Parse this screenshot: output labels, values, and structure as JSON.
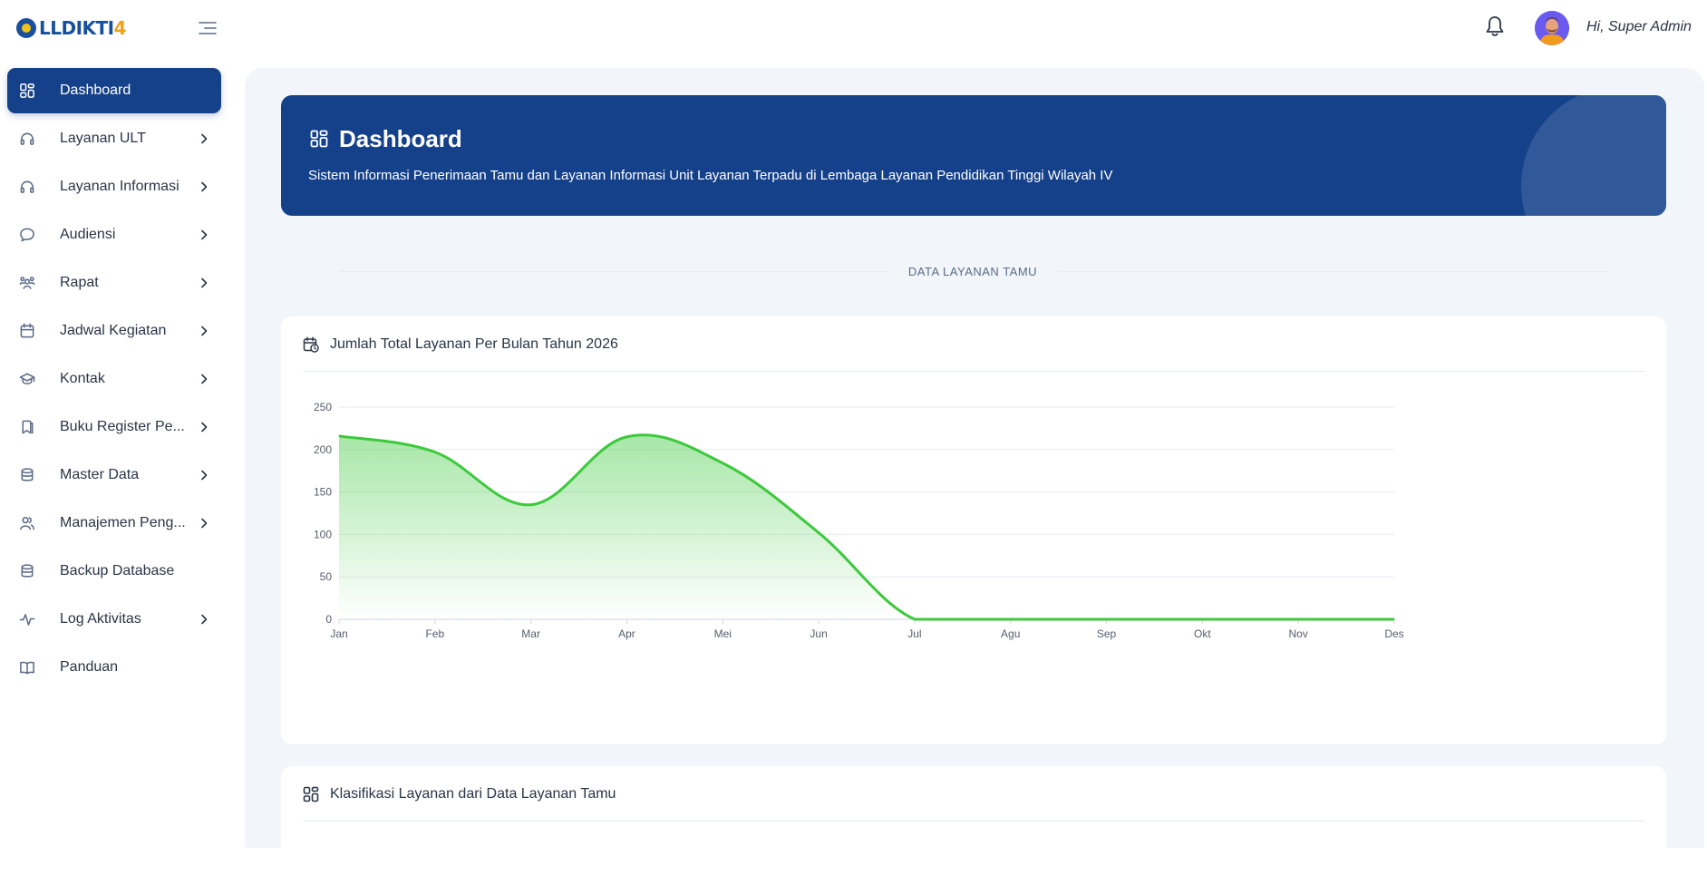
{
  "brand": {
    "name": "LLDIKTI",
    "number": "4"
  },
  "header": {
    "greeting": "Hi, Super Admin"
  },
  "sidebar": {
    "items": [
      {
        "label": "Dashboard",
        "icon": "dashboard-icon",
        "active": true,
        "chevron": false
      },
      {
        "label": "Layanan ULT",
        "icon": "headset-icon",
        "active": false,
        "chevron": true
      },
      {
        "label": "Layanan Informasi",
        "icon": "headset-icon",
        "active": false,
        "chevron": true
      },
      {
        "label": "Audiensi",
        "icon": "chat-icon",
        "active": false,
        "chevron": true
      },
      {
        "label": "Rapat",
        "icon": "users-group-icon",
        "active": false,
        "chevron": true
      },
      {
        "label": "Jadwal Kegiatan",
        "icon": "calendar-icon",
        "active": false,
        "chevron": true
      },
      {
        "label": "Kontak",
        "icon": "school-icon",
        "active": false,
        "chevron": true
      },
      {
        "label": "Buku Register Pe...",
        "icon": "bookmark-icon",
        "active": false,
        "chevron": true
      },
      {
        "label": "Master Data",
        "icon": "database-icon",
        "active": false,
        "chevron": true
      },
      {
        "label": "Manajemen Peng...",
        "icon": "users-icon",
        "active": false,
        "chevron": true
      },
      {
        "label": "Backup Database",
        "icon": "database-icon",
        "active": false,
        "chevron": false
      },
      {
        "label": "Log Aktivitas",
        "icon": "activity-icon",
        "active": false,
        "chevron": true
      },
      {
        "label": "Panduan",
        "icon": "book-icon",
        "active": false,
        "chevron": false
      }
    ]
  },
  "hero": {
    "title": "Dashboard",
    "subtitle": "Sistem Informasi Penerimaan Tamu dan Layanan Informasi Unit Layanan Terpadu di Lembaga Layanan Pendidikan Tinggi Wilayah IV"
  },
  "section": {
    "divider_label": "DATA LAYANAN TAMU"
  },
  "chart_card": {
    "title": "Jumlah Total Layanan Per Bulan Tahun 2026"
  },
  "klasifikasi_card": {
    "title": "Klasifikasi Layanan dari Data Layanan Tamu"
  },
  "colors": {
    "primary": "#15418a",
    "series": "#3cc93c",
    "background": "#f2f6fa"
  },
  "chart_data": {
    "type": "area",
    "categories": [
      "Jan",
      "Feb",
      "Mar",
      "Apr",
      "Mei",
      "Jun",
      "Jul",
      "Agu",
      "Sep",
      "Okt",
      "Nov",
      "Des"
    ],
    "series": [
      {
        "values": [
          216,
          197,
          135,
          215,
          184,
          102,
          0,
          0,
          0,
          0,
          0,
          0
        ]
      }
    ],
    "yticks": [
      0,
      50,
      100,
      150,
      200,
      250
    ],
    "ylim": [
      0,
      250
    ],
    "grid": true,
    "legend": "none"
  }
}
